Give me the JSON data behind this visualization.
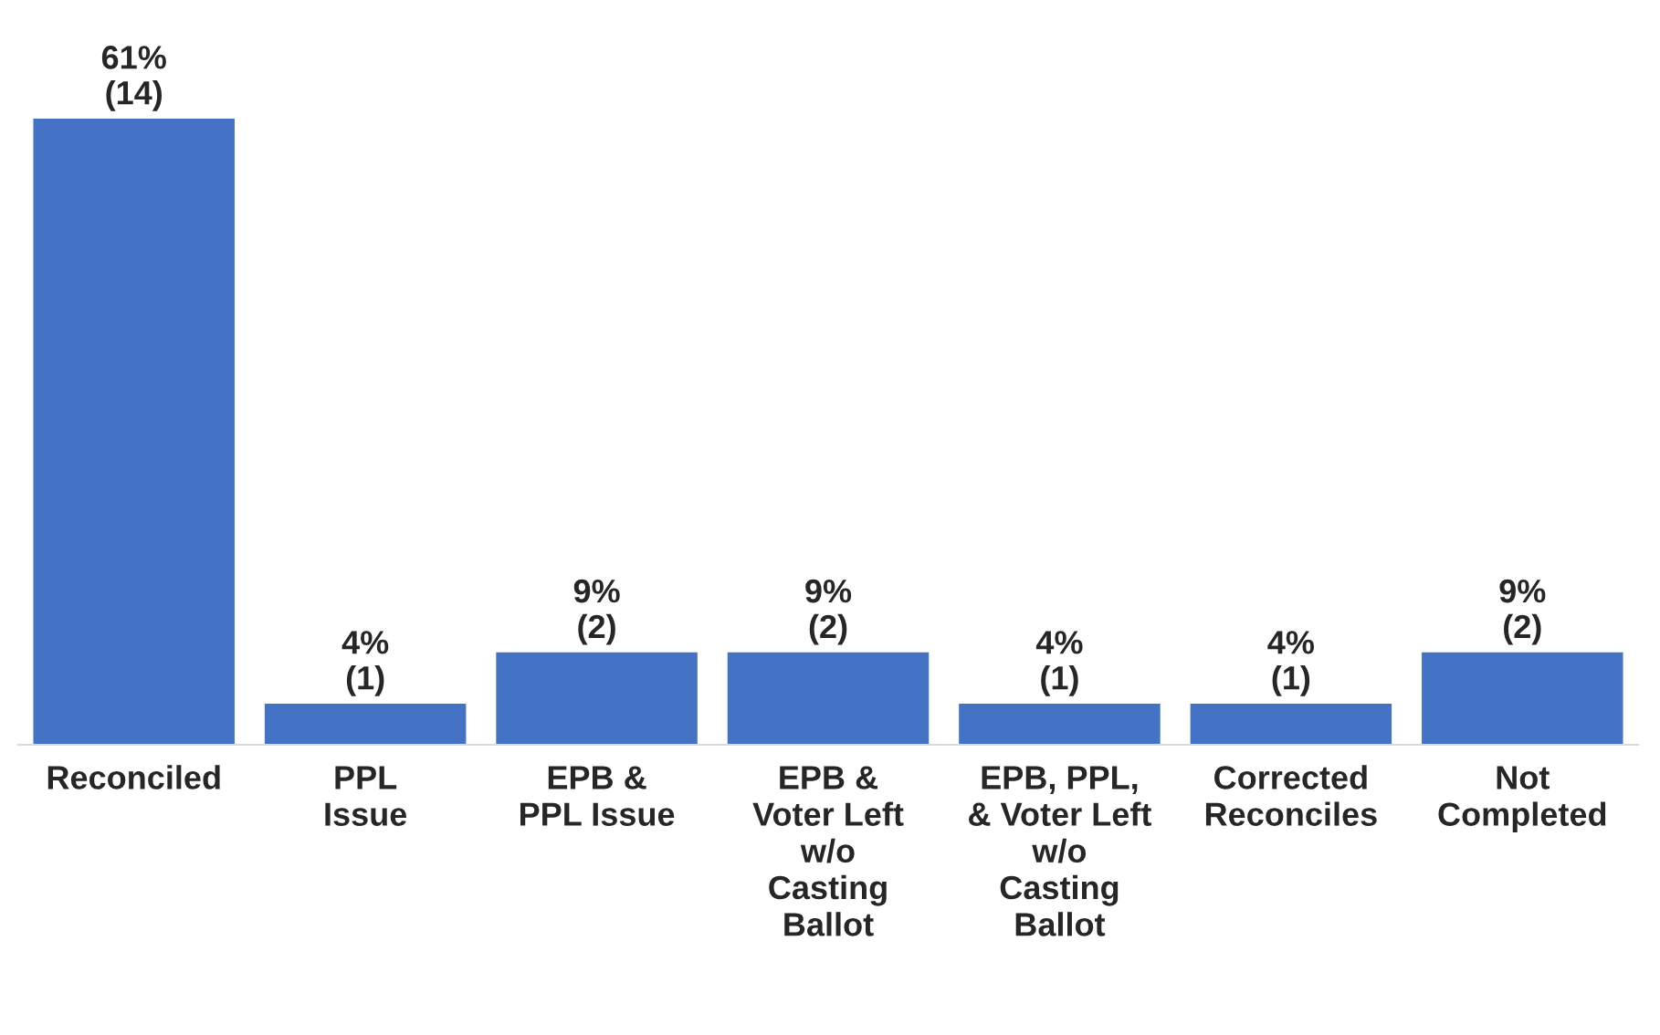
{
  "chart_data": {
    "type": "bar",
    "categories": [
      "Reconciled",
      "PPL\nIssue",
      "EPB &\nPPL Issue",
      "EPB &\nVoter Left\nw/o\nCasting\nBallot",
      "EPB, PPL,\n& Voter Left\nw/o\nCasting\nBallot",
      "Corrected\nReconciles",
      "Not\nCompleted"
    ],
    "values": [
      61,
      4,
      9,
      9,
      4,
      4,
      9
    ],
    "value_labels": [
      "61%\n(14)",
      "4%\n(1)",
      "9%\n(2)",
      "9%\n(2)",
      "4%\n(1)",
      "4%\n(1)",
      "9%\n(2)"
    ],
    "color": "#4472c4",
    "grid": false,
    "legend": false
  }
}
